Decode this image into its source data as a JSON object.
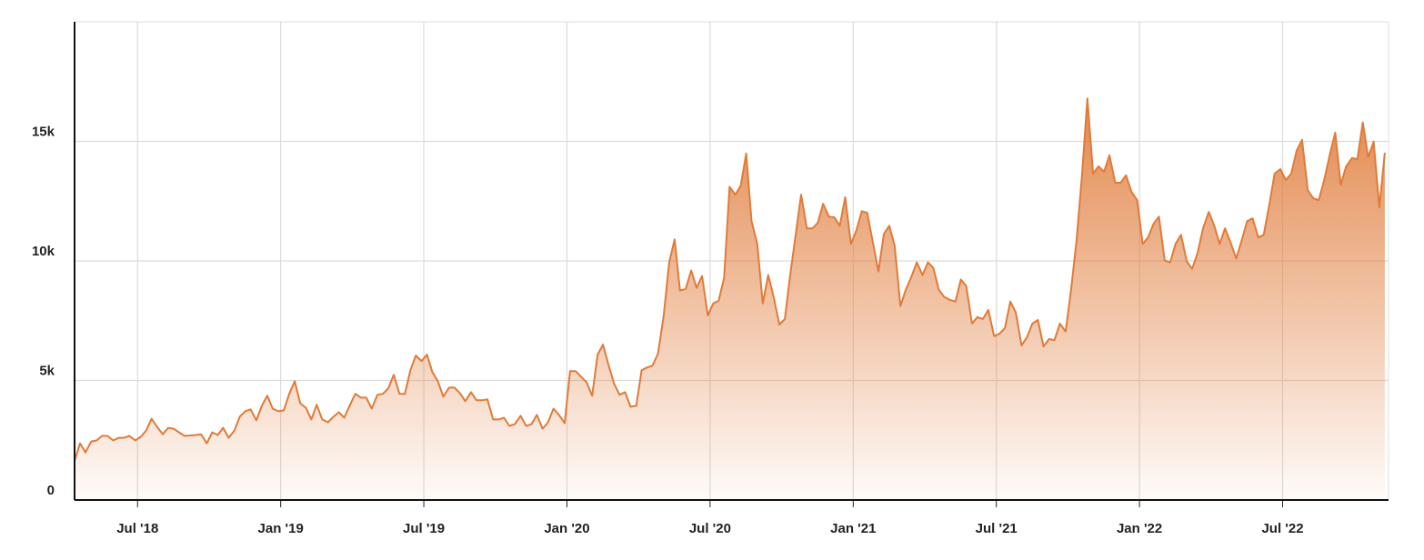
{
  "chart_data": {
    "type": "area",
    "x": [
      2018.28,
      2018.299,
      2018.318,
      2018.338,
      2018.357,
      2018.376,
      2018.395,
      2018.415,
      2018.434,
      2018.453,
      2018.472,
      2018.492,
      2018.511,
      2018.53,
      2018.549,
      2018.568,
      2018.588,
      2018.607,
      2018.626,
      2018.645,
      2018.665,
      2018.684,
      2018.703,
      2018.722,
      2018.742,
      2018.761,
      2018.78,
      2018.799,
      2018.818,
      2018.838,
      2018.857,
      2018.876,
      2018.895,
      2018.915,
      2018.934,
      2018.953,
      2018.972,
      2018.992,
      2019.011,
      2019.03,
      2019.049,
      2019.068,
      2019.088,
      2019.107,
      2019.126,
      2019.145,
      2019.165,
      2019.184,
      2019.203,
      2019.222,
      2019.242,
      2019.261,
      2019.28,
      2019.299,
      2019.318,
      2019.338,
      2019.357,
      2019.376,
      2019.395,
      2019.415,
      2019.434,
      2019.453,
      2019.472,
      2019.492,
      2019.511,
      2019.53,
      2019.549,
      2019.568,
      2019.588,
      2019.607,
      2019.626,
      2019.645,
      2019.665,
      2019.684,
      2019.703,
      2019.722,
      2019.742,
      2019.761,
      2019.78,
      2019.799,
      2019.818,
      2019.838,
      2019.857,
      2019.876,
      2019.895,
      2019.915,
      2019.934,
      2019.953,
      2019.972,
      2019.992,
      2020.011,
      2020.03,
      2020.049,
      2020.068,
      2020.088,
      2020.107,
      2020.126,
      2020.145,
      2020.165,
      2020.184,
      2020.203,
      2020.222,
      2020.242,
      2020.261,
      2020.28,
      2020.299,
      2020.318,
      2020.338,
      2020.357,
      2020.376,
      2020.395,
      2020.415,
      2020.434,
      2020.453,
      2020.472,
      2020.492,
      2020.511,
      2020.53,
      2020.549,
      2020.568,
      2020.588,
      2020.607,
      2020.626,
      2020.645,
      2020.665,
      2020.684,
      2020.703,
      2020.722,
      2020.742,
      2020.761,
      2020.78,
      2020.799,
      2020.818,
      2020.838,
      2020.857,
      2020.876,
      2020.895,
      2020.915,
      2020.934,
      2020.953,
      2020.972,
      2020.992,
      2021.011,
      2021.03,
      2021.049,
      2021.068,
      2021.088,
      2021.107,
      2021.126,
      2021.145,
      2021.165,
      2021.184,
      2021.203,
      2021.222,
      2021.242,
      2021.261,
      2021.28,
      2021.299,
      2021.318,
      2021.338,
      2021.357,
      2021.376,
      2021.395,
      2021.415,
      2021.434,
      2021.453,
      2021.472,
      2021.492,
      2021.511,
      2021.53,
      2021.549,
      2021.568,
      2021.588,
      2021.607,
      2021.626,
      2021.645,
      2021.665,
      2021.684,
      2021.703,
      2021.722,
      2021.742,
      2021.761,
      2021.78,
      2021.799,
      2021.818,
      2021.838,
      2021.857,
      2021.876,
      2021.895,
      2021.915,
      2021.934,
      2021.953,
      2021.972,
      2021.992,
      2022.011,
      2022.03,
      2022.049,
      2022.068,
      2022.088,
      2022.107,
      2022.126,
      2022.145,
      2022.165,
      2022.184,
      2022.203,
      2022.222,
      2022.242,
      2022.261,
      2022.28,
      2022.299,
      2022.318,
      2022.338,
      2022.357,
      2022.376,
      2022.395,
      2022.415,
      2022.434,
      2022.453,
      2022.472,
      2022.492,
      2022.511,
      2022.53,
      2022.549,
      2022.568,
      2022.588,
      2022.607,
      2022.626,
      2022.645,
      2022.665,
      2022.684,
      2022.703,
      2022.722,
      2022.742,
      2022.761,
      2022.78,
      2022.799,
      2022.818,
      2022.838,
      2022.857
    ],
    "values": [
      1640,
      2370,
      1990,
      2450,
      2490,
      2680,
      2680,
      2490,
      2600,
      2600,
      2680,
      2490,
      2640,
      2900,
      3400,
      3060,
      2750,
      3020,
      2980,
      2830,
      2680,
      2700,
      2720,
      2750,
      2370,
      2830,
      2720,
      3020,
      2600,
      2900,
      3480,
      3710,
      3790,
      3330,
      3940,
      4360,
      3820,
      3710,
      3750,
      4440,
      4970,
      4050,
      3860,
      3370,
      3980,
      3370,
      3250,
      3480,
      3670,
      3440,
      3980,
      4440,
      4280,
      4280,
      3820,
      4400,
      4440,
      4670,
      5240,
      4440,
      4440,
      5430,
      6040,
      5810,
      6080,
      5350,
      4970,
      4320,
      4700,
      4700,
      4470,
      4130,
      4510,
      4170,
      4170,
      4210,
      3370,
      3370,
      3440,
      3100,
      3170,
      3520,
      3100,
      3170,
      3560,
      2980,
      3250,
      3820,
      3560,
      3210,
      5390,
      5390,
      5160,
      4930,
      4360,
      6080,
      6500,
      5660,
      4860,
      4400,
      4510,
      3900,
      3940,
      5430,
      5540,
      5620,
      6120,
      7720,
      9940,
      10900,
      8760,
      8830,
      9600,
      8870,
      9370,
      7720,
      8220,
      8340,
      9290,
      13100,
      12770,
      13150,
      14490,
      11660,
      10710,
      8220,
      9410,
      8490,
      7340,
      7570,
      9410,
      11090,
      12770,
      11360,
      11360,
      11590,
      12390,
      11850,
      11820,
      11470,
      12660,
      10710,
      11280,
      12080,
      12010,
      10820,
      9560,
      11130,
      11470,
      10630,
      8110,
      8800,
      9330,
      9940,
      9410,
      9940,
      9710,
      8800,
      8490,
      8370,
      8300,
      9220,
      8950,
      7380,
      7650,
      7570,
      7950,
      6850,
      6960,
      7190,
      8300,
      7840,
      6460,
      6810,
      7380,
      7530,
      6420,
      6730,
      6690,
      7380,
      7040,
      8800,
      10860,
      13540,
      16790,
      13650,
      13960,
      13730,
      14420,
      13270,
      13270,
      13580,
      12890,
      12540,
      10710,
      10980,
      11550,
      11850,
      10020,
      9940,
      10710,
      11090,
      9980,
      9670,
      10330,
      11360,
      12050,
      11470,
      10710,
      11360,
      10780,
      10100,
      10860,
      11660,
      11780,
      10980,
      11090,
      12310,
      13650,
      13840,
      13380,
      13650,
      14610,
      15070,
      12960,
      12620,
      12540,
      13380,
      14460,
      15370,
      13190,
      13960,
      14300,
      14260,
      15790,
      14340,
      14990,
      12240,
      14530
    ],
    "color": "#e07b39",
    "xlim": [
      2018.28,
      2022.87
    ],
    "xticks": [
      {
        "value": 2018.5,
        "label": "Jul '18"
      },
      {
        "value": 2019.0,
        "label": "Jan '19"
      },
      {
        "value": 2019.5,
        "label": "Jul '19"
      },
      {
        "value": 2020.0,
        "label": "Jan '20"
      },
      {
        "value": 2020.5,
        "label": "Jul '20"
      },
      {
        "value": 2021.0,
        "label": "Jan '21"
      },
      {
        "value": 2021.5,
        "label": "Jul '21"
      },
      {
        "value": 2022.0,
        "label": "Jan '22"
      },
      {
        "value": 2022.5,
        "label": "Jul '22"
      }
    ],
    "ylim": [
      0,
      20000
    ],
    "yticks": [
      0,
      {
        "value": 5000,
        "label": "5k"
      },
      {
        "value": 10000,
        "label": "10k"
      },
      {
        "value": 15000,
        "label": "15k"
      }
    ],
    "grid": true
  }
}
